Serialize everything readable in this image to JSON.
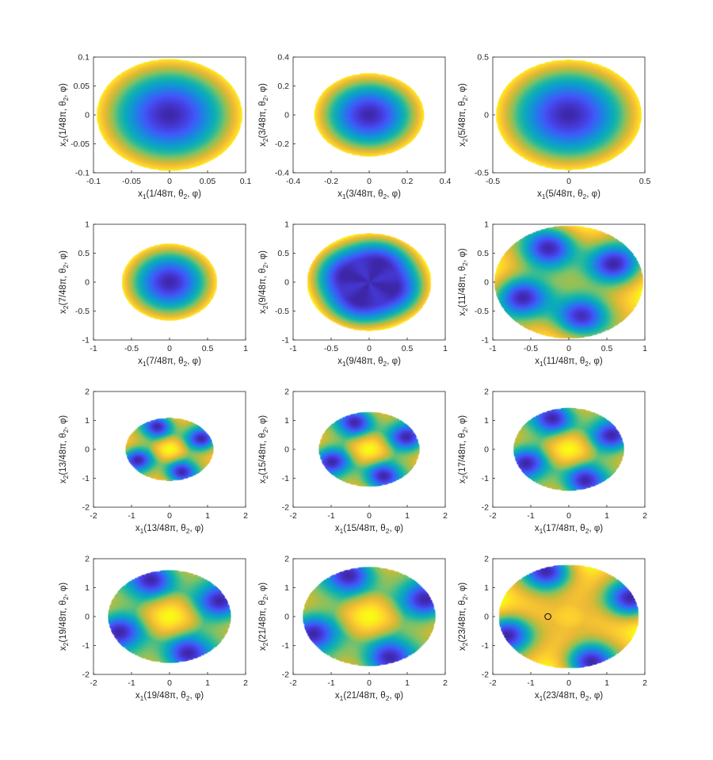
{
  "chart_data": [
    {
      "type": "heatmap",
      "xlabel": "x1(1/48π, θ2, φ)",
      "ylabel": "x2(1/48π, θ2, φ)",
      "xlim": [
        -0.1,
        0.1
      ],
      "ylim": [
        -0.1,
        0.1
      ],
      "xticks": [
        -0.1,
        -0.05,
        0,
        0.05,
        0.1
      ],
      "yticks": [
        -0.1,
        -0.05,
        0,
        0.05,
        0.1
      ],
      "xticklabels": [
        "-0.1",
        "-0.05",
        "0",
        "0.05",
        "0.1"
      ],
      "yticklabels": [
        "-0.1",
        "-0.05",
        "0",
        "0.05",
        "0.1"
      ],
      "disk": {
        "rx": 0.096,
        "ry": 0.097
      },
      "pattern": "bowl",
      "minima": [],
      "markers": []
    },
    {
      "type": "heatmap",
      "xlabel": "x1(3/48π, θ2, φ)",
      "ylabel": "x2(3/48π, θ2, φ)",
      "xlim": [
        -0.4,
        0.4
      ],
      "ylim": [
        -0.4,
        0.4
      ],
      "xticks": [
        -0.4,
        -0.2,
        0,
        0.2,
        0.4
      ],
      "yticks": [
        -0.4,
        -0.2,
        0,
        0.2,
        0.4
      ],
      "xticklabels": [
        "-0.4",
        "-0.2",
        "0",
        "0.2",
        "0.4"
      ],
      "yticklabels": [
        "-0.4",
        "-0.2",
        "0",
        "0.2",
        "0.4"
      ],
      "disk": {
        "rx": 0.29,
        "ry": 0.29
      },
      "pattern": "bowl",
      "minima": [],
      "markers": []
    },
    {
      "type": "heatmap",
      "xlabel": "x1(5/48π, θ2, φ)",
      "ylabel": "x2(5/48π, θ2, φ)",
      "xlim": [
        -0.5,
        0.5
      ],
      "ylim": [
        -0.5,
        0.5
      ],
      "xticks": [
        -0.5,
        0,
        0.5
      ],
      "yticks": [
        -0.5,
        0,
        0.5
      ],
      "xticklabels": [
        "-0.5",
        "0",
        "0.5"
      ],
      "yticklabels": [
        "-0.5",
        "0",
        "0.5"
      ],
      "disk": {
        "rx": 0.48,
        "ry": 0.48
      },
      "pattern": "bowl",
      "minima": [],
      "markers": []
    },
    {
      "type": "heatmap",
      "xlabel": "x1(7/48π, θ2, φ)",
      "ylabel": "x2(7/48π, θ2, φ)",
      "xlim": [
        -1,
        1
      ],
      "ylim": [
        -1,
        1
      ],
      "xticks": [
        -1,
        -0.5,
        0,
        0.5,
        1
      ],
      "yticks": [
        -1,
        -0.5,
        0,
        0.5,
        1
      ],
      "xticklabels": [
        "-1",
        "-0.5",
        "0",
        "0.5",
        "1"
      ],
      "yticklabels": [
        "-1",
        "-0.5",
        "0",
        "0.5",
        "1"
      ],
      "disk": {
        "rx": 0.63,
        "ry": 0.67
      },
      "pattern": "bowl",
      "minima": [],
      "markers": []
    },
    {
      "type": "heatmap",
      "xlabel": "x1(9/48π, θ2, φ)",
      "ylabel": "x2(9/48π, θ2, φ)",
      "xlim": [
        -1,
        1
      ],
      "ylim": [
        -1,
        1
      ],
      "xticks": [
        -1,
        -0.5,
        0,
        0.5,
        1
      ],
      "yticks": [
        -1,
        -0.5,
        0,
        0.5,
        1
      ],
      "xticklabels": [
        "-1",
        "-0.5",
        "0",
        "0.5",
        "1"
      ],
      "yticklabels": [
        "-1",
        "-0.5",
        "0",
        "0.5",
        "1"
      ],
      "disk": {
        "rx": 0.82,
        "ry": 0.85
      },
      "pattern": "flat",
      "minima": [],
      "markers": []
    },
    {
      "type": "heatmap",
      "xlabel": "x1(11/48π, θ2, φ)",
      "ylabel": "x2(11/48π, θ2, φ)",
      "xlim": [
        -1,
        1
      ],
      "ylim": [
        -1,
        1
      ],
      "xticks": [
        -1,
        -0.5,
        0,
        0.5,
        1
      ],
      "yticks": [
        -1,
        -0.5,
        0,
        0.5,
        1
      ],
      "xticklabels": [
        "-1",
        "-0.5",
        "0",
        "0.5",
        "1"
      ],
      "yticklabels": [
        "-1",
        "-0.5",
        "0",
        "0.5",
        "1"
      ],
      "disk": {
        "rx": 0.98,
        "ry": 0.98
      },
      "pattern": "wells",
      "center_level": 0.32,
      "minima": [
        [
          -0.25,
          0.6
        ],
        [
          0.6,
          0.3
        ],
        [
          -0.62,
          -0.25
        ],
        [
          0.15,
          -0.6
        ]
      ],
      "markers": []
    },
    {
      "type": "heatmap",
      "xlabel": "x1(13/48π, θ2, φ)",
      "ylabel": "x2(13/48π, θ2, φ)",
      "xlim": [
        -2,
        2
      ],
      "ylim": [
        -2,
        2
      ],
      "xticks": [
        -2,
        -1,
        0,
        1,
        2
      ],
      "yticks": [
        -2,
        -1,
        0,
        1,
        2
      ],
      "xticklabels": [
        "-2",
        "-1",
        "0",
        "1",
        "2"
      ],
      "yticklabels": [
        "-2",
        "-1",
        "0",
        "1",
        "2"
      ],
      "disk": {
        "rx": 1.16,
        "ry": 1.1
      },
      "pattern": "wells",
      "center_level": 0.78,
      "minima": [
        [
          -0.3,
          0.8
        ],
        [
          0.85,
          0.35
        ],
        [
          -0.85,
          -0.35
        ],
        [
          0.3,
          -0.8
        ]
      ],
      "markers": []
    },
    {
      "type": "heatmap",
      "xlabel": "x1(15/48π, θ2, φ)",
      "ylabel": "x2(15/48π, θ2, φ)",
      "xlim": [
        -2,
        2
      ],
      "ylim": [
        -2,
        2
      ],
      "xticks": [
        -2,
        -1,
        0,
        1,
        2
      ],
      "yticks": [
        -2,
        -1,
        0,
        1,
        2
      ],
      "xticklabels": [
        "-2",
        "-1",
        "0",
        "1",
        "2"
      ],
      "yticklabels": [
        "-2",
        "-1",
        "0",
        "1",
        "2"
      ],
      "disk": {
        "rx": 1.33,
        "ry": 1.3
      },
      "pattern": "wells",
      "center_level": 0.86,
      "minima": [
        [
          -0.35,
          0.95
        ],
        [
          1.0,
          0.4
        ],
        [
          -1.0,
          -0.4
        ],
        [
          0.35,
          -0.95
        ]
      ],
      "markers": []
    },
    {
      "type": "heatmap",
      "xlabel": "x1(17/48π, θ2, φ)",
      "ylabel": "x2(17/48π, θ2, φ)",
      "xlim": [
        -2,
        2
      ],
      "ylim": [
        -2,
        2
      ],
      "xticks": [
        -2,
        -1,
        0,
        1,
        2
      ],
      "yticks": [
        -2,
        -1,
        0,
        1,
        2
      ],
      "xticklabels": [
        "-2",
        "-1",
        "0",
        "1",
        "2"
      ],
      "yticklabels": [
        "-2",
        "-1",
        "0",
        "1",
        "2"
      ],
      "disk": {
        "rx": 1.46,
        "ry": 1.44
      },
      "pattern": "wells",
      "center_level": 0.9,
      "minima": [
        [
          -0.4,
          1.1
        ],
        [
          1.15,
          0.45
        ],
        [
          -1.15,
          -0.45
        ],
        [
          0.4,
          -1.1
        ]
      ],
      "markers": []
    },
    {
      "type": "heatmap",
      "xlabel": "x1(19/48π, θ2, φ)",
      "ylabel": "x2(19/48π, θ2, φ)",
      "xlim": [
        -2,
        2
      ],
      "ylim": [
        -2,
        2
      ],
      "xticks": [
        -2,
        -1,
        0,
        1,
        2
      ],
      "yticks": [
        -2,
        -1,
        0,
        1,
        2
      ],
      "xticklabels": [
        "-2",
        "-1",
        "0",
        "1",
        "2"
      ],
      "yticklabels": [
        "-2",
        "-1",
        "0",
        "1",
        "2"
      ],
      "disk": {
        "rx": 1.62,
        "ry": 1.61
      },
      "pattern": "wells",
      "center_level": 0.95,
      "minima": [
        [
          -0.45,
          1.3
        ],
        [
          1.35,
          0.5
        ],
        [
          -1.35,
          -0.5
        ],
        [
          0.45,
          -1.3
        ]
      ],
      "markers": []
    },
    {
      "type": "heatmap",
      "xlabel": "x1(21/48π, θ2, φ)",
      "ylabel": "x2(21/48π, θ2, φ)",
      "xlim": [
        -2,
        2
      ],
      "ylim": [
        -2,
        2
      ],
      "xticks": [
        -2,
        -1,
        0,
        1,
        2
      ],
      "yticks": [
        -2,
        -1,
        0,
        1,
        2
      ],
      "xticklabels": [
        "-2",
        "-1",
        "0",
        "1",
        "2"
      ],
      "yticklabels": [
        "-2",
        "-1",
        "0",
        "1",
        "2"
      ],
      "disk": {
        "rx": 1.75,
        "ry": 1.72
      },
      "pattern": "wells",
      "center_level": 0.88,
      "minima": [
        [
          -0.5,
          1.45
        ],
        [
          1.5,
          0.55
        ],
        [
          -1.5,
          -0.55
        ],
        [
          0.5,
          -1.45
        ]
      ],
      "markers": []
    },
    {
      "type": "heatmap",
      "xlabel": "x1(23/48π, θ2, φ)",
      "ylabel": "x2(23/48π, θ2, φ)",
      "xlim": [
        -2,
        2
      ],
      "ylim": [
        -2,
        2
      ],
      "xticks": [
        -2,
        -1,
        0,
        1,
        2
      ],
      "yticks": [
        -2,
        -1,
        0,
        1,
        2
      ],
      "xticklabels": [
        "-2",
        "-1",
        "0",
        "1",
        "2"
      ],
      "yticklabels": [
        "-2",
        "-1",
        "0",
        "1",
        "2"
      ],
      "disk": {
        "rx": 1.85,
        "ry": 1.8
      },
      "pattern": "wells",
      "center_level": 0.5,
      "minima": [
        [
          -0.55,
          1.6
        ],
        [
          1.65,
          0.6
        ],
        [
          -1.65,
          -0.6
        ],
        [
          0.55,
          -1.6
        ]
      ],
      "markers": [
        [
          -0.55,
          0.0
        ]
      ]
    }
  ]
}
